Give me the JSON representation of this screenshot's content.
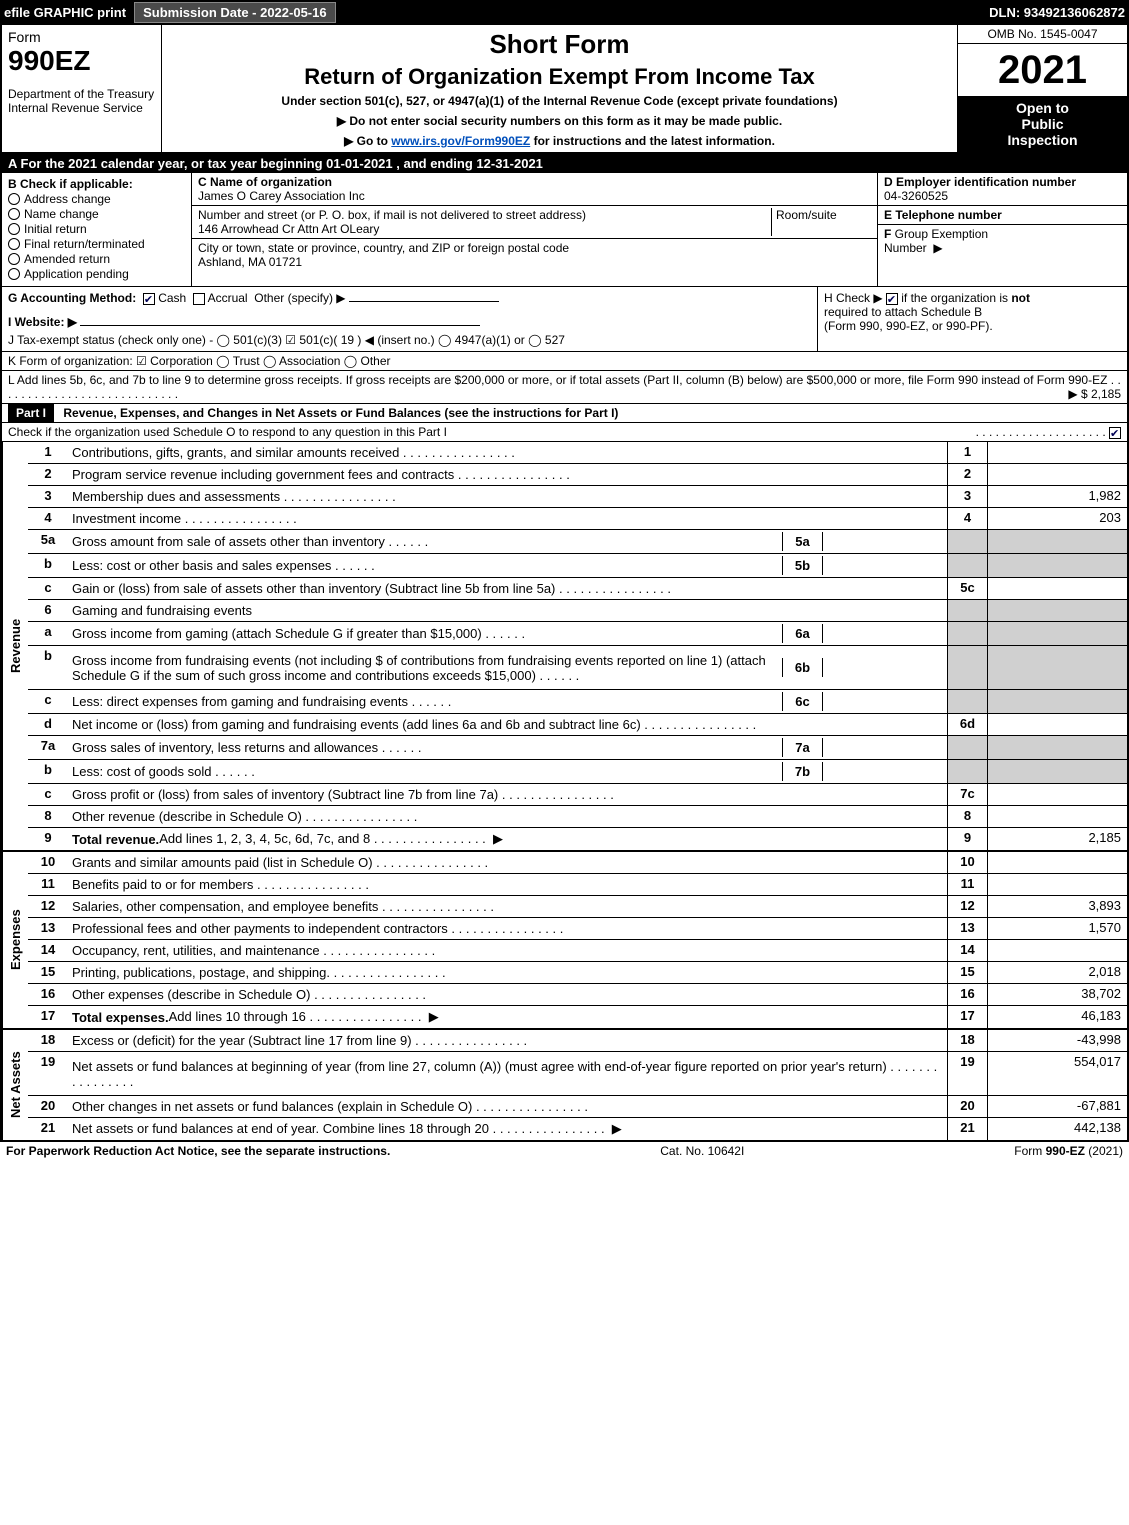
{
  "topbar": {
    "efile": "efile GRAPHIC print",
    "submission": "Submission Date - 2022-05-16",
    "dln": "DLN: 93492136062872"
  },
  "header": {
    "form_label": "Form",
    "form_number": "990EZ",
    "dept1": "Department of the Treasury",
    "dept2": "Internal Revenue Service",
    "short_form": "Short Form",
    "return_title": "Return of Organization Exempt From Income Tax",
    "under_section": "Under section 501(c), 527, or 4947(a)(1) of the Internal Revenue Code (except private foundations)",
    "arrow1": "▶ Do not enter social security numbers on this form as it may be made public.",
    "arrow2_pre": "▶ Go to ",
    "arrow2_link": "www.irs.gov/Form990EZ",
    "arrow2_post": " for instructions and the latest information.",
    "omb": "OMB No. 1545-0047",
    "year": "2021",
    "open1": "Open to",
    "open2": "Public",
    "open3": "Inspection"
  },
  "row_a": "A  For the 2021 calendar year, or tax year beginning 01-01-2021 , and ending 12-31-2021",
  "section_b": {
    "title": "B  Check if applicable:",
    "items": [
      "Address change",
      "Name change",
      "Initial return",
      "Final return/terminated",
      "Amended return",
      "Application pending"
    ]
  },
  "section_c": {
    "label_name": "C Name of organization",
    "name": "James O Carey Association Inc",
    "label_street": "Number and street (or P. O. box, if mail is not delivered to street address)",
    "room": "Room/suite",
    "street": "146 Arrowhead Cr Attn Art OLeary",
    "label_city": "City or town, state or province, country, and ZIP or foreign postal code",
    "city": "Ashland, MA  01721"
  },
  "section_def": {
    "d_label": "D Employer identification number",
    "d_val": "04-3260525",
    "e_label": "E Telephone number",
    "e_val": "",
    "f_label": "F Group Exemption Number  ▶",
    "f_val": ""
  },
  "row_g": {
    "label": "G Accounting Method:",
    "cash": "Cash",
    "accrual": "Accrual",
    "other": "Other (specify) ▶"
  },
  "row_h": {
    "text1": "H  Check ▶",
    "text2": "if the organization is",
    "not": "not",
    "text3": "required to attach Schedule B",
    "text4": "(Form 990, 990-EZ, or 990-PF)."
  },
  "row_i": "I Website: ▶",
  "row_j": "J Tax-exempt status (check only one) -  ◯ 501(c)(3)  ☑ 501(c)( 19 ) ◀ (insert no.)  ◯ 4947(a)(1) or  ◯ 527",
  "row_k": "K Form of organization:  ☑ Corporation   ◯ Trust   ◯ Association   ◯ Other",
  "row_l": {
    "text": "L Add lines 5b, 6c, and 7b to line 9 to determine gross receipts. If gross receipts are $200,000 or more, or if total assets (Part II, column (B) below) are $500,000 or more, file Form 990 instead of Form 990-EZ",
    "arrow": "▶ $ 2,185"
  },
  "part1": {
    "label": "Part I",
    "title": "Revenue, Expenses, and Changes in Net Assets or Fund Balances (see the instructions for Part I)",
    "check_line": "Check if the organization used Schedule O to respond to any question in this Part I"
  },
  "sections": {
    "revenue": {
      "side": "Revenue",
      "rows": [
        {
          "n": "1",
          "desc": "Contributions, gifts, grants, and similar amounts received",
          "ref": "1",
          "val": ""
        },
        {
          "n": "2",
          "desc": "Program service revenue including government fees and contracts",
          "ref": "2",
          "val": ""
        },
        {
          "n": "3",
          "desc": "Membership dues and assessments",
          "ref": "3",
          "val": "1,982"
        },
        {
          "n": "4",
          "desc": "Investment income",
          "ref": "4",
          "val": "203"
        },
        {
          "n": "5a",
          "desc": "Gross amount from sale of assets other than inventory",
          "sub": "5a",
          "subval": "",
          "grey": true
        },
        {
          "n": "b",
          "desc": "Less: cost or other basis and sales expenses",
          "sub": "5b",
          "subval": "",
          "grey": true
        },
        {
          "n": "c",
          "desc": "Gain or (loss) from sale of assets other than inventory (Subtract line 5b from line 5a)",
          "ref": "5c",
          "val": ""
        },
        {
          "n": "6",
          "desc": "Gaming and fundraising events",
          "noref": true,
          "grey": true
        },
        {
          "n": "a",
          "desc": "Gross income from gaming (attach Schedule G if greater than $15,000)",
          "sub": "6a",
          "subval": "",
          "grey": true
        },
        {
          "n": "b",
          "desc": "Gross income from fundraising events (not including $                        of contributions from fundraising events reported on line 1) (attach Schedule G if the sum of such gross income and contributions exceeds $15,000)",
          "sub": "6b",
          "subval": "",
          "grey": true,
          "tall": true
        },
        {
          "n": "c",
          "desc": "Less: direct expenses from gaming and fundraising events",
          "sub": "6c",
          "subval": "",
          "grey": true
        },
        {
          "n": "d",
          "desc": "Net income or (loss) from gaming and fundraising events (add lines 6a and 6b and subtract line 6c)",
          "ref": "6d",
          "val": ""
        },
        {
          "n": "7a",
          "desc": "Gross sales of inventory, less returns and allowances",
          "sub": "7a",
          "subval": "",
          "grey": true
        },
        {
          "n": "b",
          "desc": "Less: cost of goods sold",
          "sub": "7b",
          "subval": "",
          "grey": true
        },
        {
          "n": "c",
          "desc": "Gross profit or (loss) from sales of inventory (Subtract line 7b from line 7a)",
          "ref": "7c",
          "val": ""
        },
        {
          "n": "8",
          "desc": "Other revenue (describe in Schedule O)",
          "ref": "8",
          "val": ""
        },
        {
          "n": "9",
          "desc": "Total revenue. Add lines 1, 2, 3, 4, 5c, 6d, 7c, and 8",
          "ref": "9",
          "val": "2,185",
          "bold": true,
          "arrow": true
        }
      ]
    },
    "expenses": {
      "side": "Expenses",
      "rows": [
        {
          "n": "10",
          "desc": "Grants and similar amounts paid (list in Schedule O)",
          "ref": "10",
          "val": ""
        },
        {
          "n": "11",
          "desc": "Benefits paid to or for members",
          "ref": "11",
          "val": ""
        },
        {
          "n": "12",
          "desc": "Salaries, other compensation, and employee benefits",
          "ref": "12",
          "val": "3,893"
        },
        {
          "n": "13",
          "desc": "Professional fees and other payments to independent contractors",
          "ref": "13",
          "val": "1,570"
        },
        {
          "n": "14",
          "desc": "Occupancy, rent, utilities, and maintenance",
          "ref": "14",
          "val": ""
        },
        {
          "n": "15",
          "desc": "Printing, publications, postage, and shipping.",
          "ref": "15",
          "val": "2,018"
        },
        {
          "n": "16",
          "desc": "Other expenses (describe in Schedule O)",
          "ref": "16",
          "val": "38,702"
        },
        {
          "n": "17",
          "desc": "Total expenses. Add lines 10 through 16",
          "ref": "17",
          "val": "46,183",
          "bold": true,
          "arrow": true
        }
      ]
    },
    "netassets": {
      "side": "Net Assets",
      "rows": [
        {
          "n": "18",
          "desc": "Excess or (deficit) for the year (Subtract line 17 from line 9)",
          "ref": "18",
          "val": "-43,998"
        },
        {
          "n": "19",
          "desc": "Net assets or fund balances at beginning of year (from line 27, column (A)) (must agree with end-of-year figure reported on prior year's return)",
          "ref": "19",
          "val": "554,017",
          "tall": true
        },
        {
          "n": "20",
          "desc": "Other changes in net assets or fund balances (explain in Schedule O)",
          "ref": "20",
          "val": "-67,881"
        },
        {
          "n": "21",
          "desc": "Net assets or fund balances at end of year. Combine lines 18 through 20",
          "ref": "21",
          "val": "442,138",
          "arrow": true
        }
      ]
    }
  },
  "footer": {
    "left": "For Paperwork Reduction Act Notice, see the separate instructions.",
    "mid": "Cat. No. 10642I",
    "right_pre": "Form ",
    "right_bold": "990-EZ",
    "right_post": " (2021)"
  }
}
